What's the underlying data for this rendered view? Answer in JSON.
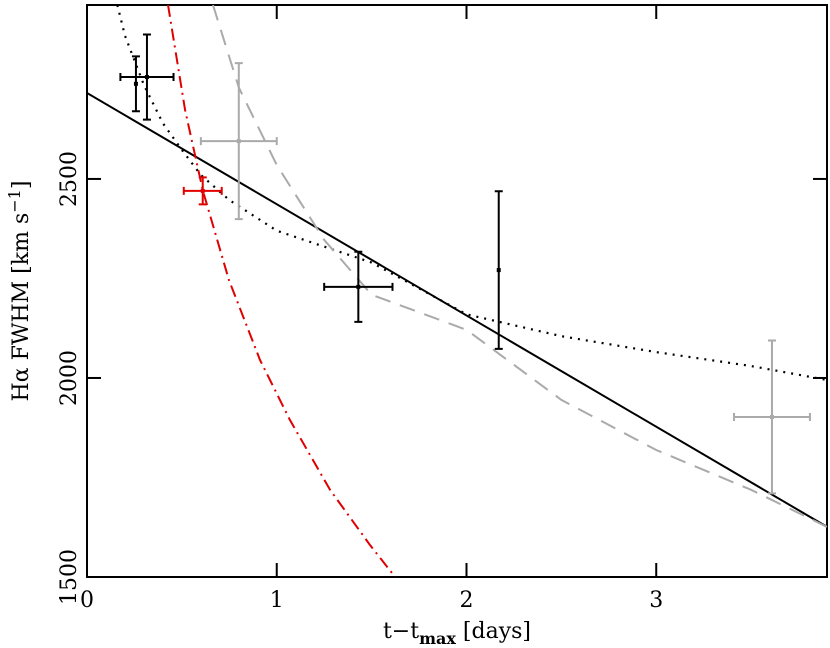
{
  "chart_data": {
    "type": "line",
    "xlabel_parts": [
      "t−t",
      "max",
      " [days]"
    ],
    "ylabel_parts": [
      "Hα  FWHM  [km s",
      "−1",
      "]"
    ],
    "xlim": [
      0,
      3.9
    ],
    "ylim": [
      1500,
      2937
    ],
    "xticks": [
      0,
      1,
      2,
      3
    ],
    "yticks": [
      1500,
      2000,
      2500
    ],
    "series": [
      {
        "color": "#000000",
        "style": "solid",
        "x": [
          0,
          3.9
        ],
        "values": [
          2716,
          1626
        ]
      },
      {
        "color": "#000000",
        "style": "dotted",
        "x": [
          0.16,
          0.2,
          0.3,
          0.4,
          0.5,
          0.6,
          0.75,
          1.0,
          1.25,
          1.5,
          2.0,
          2.5,
          3.0,
          3.5,
          3.9
        ],
        "values": [
          2937,
          2860,
          2736,
          2640,
          2573,
          2510,
          2447,
          2370,
          2330,
          2290,
          2160,
          2105,
          2065,
          2030,
          1995
        ]
      },
      {
        "color": "#e00000",
        "style": "dashdot",
        "x": [
          0.427,
          0.517,
          0.611,
          0.748,
          0.912,
          1.07,
          1.281,
          1.492,
          1.624
        ],
        "values": [
          2937,
          2673,
          2470,
          2246,
          2045,
          1894,
          1719,
          1580,
          1500
        ]
      },
      {
        "color": "#aaaaaa",
        "style": "dashed",
        "x": [
          0.664,
          0.8,
          1.0,
          1.25,
          1.5,
          2.0,
          2.5,
          3.0,
          3.5,
          3.9
        ],
        "values": [
          2937,
          2730,
          2535,
          2347,
          2209,
          2121,
          1945,
          1819,
          1719,
          1626
        ]
      }
    ],
    "errorbars": [
      {
        "color": "#000000",
        "x": 0.258,
        "y": 2739,
        "yerr": 69
      },
      {
        "color": "#000000",
        "x": 0.316,
        "y": 2756,
        "yerr": 107,
        "xerr": 0.14
      },
      {
        "color": "#000000",
        "x": 1.43,
        "y": 2229,
        "yerr": 88,
        "xerr": 0.18
      },
      {
        "color": "#000000",
        "x": 2.17,
        "y": 2271,
        "yerr": 198
      },
      {
        "color": "#e00000",
        "x": 0.61,
        "y": 2470,
        "yerr": 34,
        "xerr": 0.1
      },
      {
        "color": "#aaaaaa",
        "x": 0.8,
        "y": 2595,
        "yerr": 196,
        "xerr": 0.2
      },
      {
        "color": "#aaaaaa",
        "x": 3.61,
        "y": 1902,
        "yerr": 192,
        "xerr": 0.2
      }
    ]
  }
}
